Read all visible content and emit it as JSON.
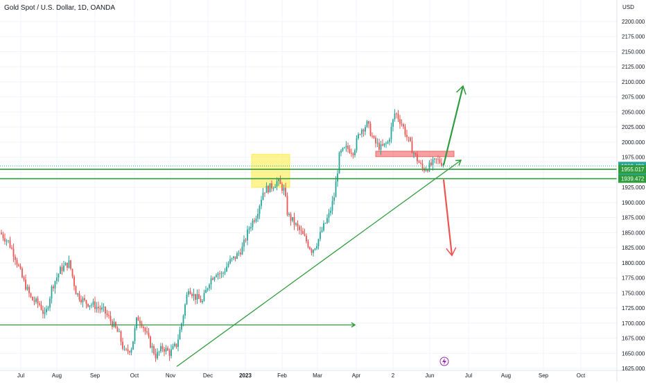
{
  "header": {
    "symbol_title": "Gold Spot / U.S. Dollar, 1D, OANDA",
    "currency": "USD"
  },
  "chart_data": {
    "type": "candlestick",
    "x_tick_labels": [
      "Jul",
      "Aug",
      "Sep",
      "Oct",
      "Nov",
      "Dec",
      "2023",
      "Feb",
      "Mar",
      "Apr",
      "2",
      "Jun",
      "Jul",
      "Aug",
      "Sep",
      "Oct"
    ],
    "y_tick_labels": [
      "2200.000",
      "2175.000",
      "2150.000",
      "2125.000",
      "2100.000",
      "2075.000",
      "2050.000",
      "2025.000",
      "2000.000",
      "1975.000",
      "1950.000",
      "1925.000",
      "1900.000",
      "1875.000",
      "1850.000",
      "1825.000",
      "1800.000",
      "1775.000",
      "1750.000",
      "1725.000",
      "1700.000",
      "1675.000",
      "1650.000",
      "1625.000"
    ],
    "y_ticks": [
      2200,
      2175,
      2150,
      2125,
      2100,
      2075,
      2050,
      2025,
      2000,
      1975,
      1950,
      1925,
      1900,
      1875,
      1850,
      1825,
      1800,
      1775,
      1750,
      1725,
      1700,
      1675,
      1650,
      1625
    ],
    "ylim": [
      1620,
      2222
    ],
    "price_labels": [
      {
        "text": "1960.490",
        "value": 1960.49,
        "color": "#26a69a"
      },
      {
        "text": "15:33:46",
        "value": 1953.2,
        "color": "#26a69a"
      },
      {
        "text": "1955.017",
        "value": 1955.017,
        "color": "#2e9b3c"
      },
      {
        "text": "1939.472",
        "value": 1939.472,
        "color": "#2e9b3c"
      }
    ],
    "horizontal_levels": [
      {
        "value": 1955.017,
        "color": "#2e9b3c"
      },
      {
        "value": 1939.472,
        "color": "#2e9b3c"
      },
      {
        "value": 1960.49,
        "color": "#26a69a",
        "style": "dotted"
      }
    ],
    "up_color": "#26a69a",
    "down_color": "#ef5350",
    "waypoints": [
      [
        0,
        1850
      ],
      [
        12,
        1835
      ],
      [
        22,
        1810
      ],
      [
        32,
        1775
      ],
      [
        45,
        1740
      ],
      [
        58,
        1730
      ],
      [
        65,
        1710
      ],
      [
        75,
        1760
      ],
      [
        88,
        1790
      ],
      [
        100,
        1800
      ],
      [
        110,
        1750
      ],
      [
        122,
        1735
      ],
      [
        135,
        1730
      ],
      [
        150,
        1720
      ],
      [
        162,
        1700
      ],
      [
        172,
        1680
      ],
      [
        180,
        1650
      ],
      [
        190,
        1660
      ],
      [
        198,
        1710
      ],
      [
        205,
        1700
      ],
      [
        215,
        1670
      ],
      [
        225,
        1645
      ],
      [
        235,
        1660
      ],
      [
        245,
        1650
      ],
      [
        255,
        1665
      ],
      [
        262,
        1700
      ],
      [
        272,
        1760
      ],
      [
        280,
        1745
      ],
      [
        292,
        1735
      ],
      [
        302,
        1770
      ],
      [
        312,
        1785
      ],
      [
        320,
        1780
      ],
      [
        330,
        1800
      ],
      [
        340,
        1810
      ],
      [
        350,
        1825
      ],
      [
        360,
        1860
      ],
      [
        370,
        1880
      ],
      [
        380,
        1920
      ],
      [
        390,
        1925
      ],
      [
        400,
        1935
      ],
      [
        410,
        1920
      ],
      [
        415,
        1880
      ],
      [
        425,
        1865
      ],
      [
        440,
        1840
      ],
      [
        450,
        1820
      ],
      [
        458,
        1835
      ],
      [
        465,
        1855
      ],
      [
        475,
        1880
      ],
      [
        482,
        1910
      ],
      [
        490,
        1980
      ],
      [
        500,
        1990
      ],
      [
        510,
        1985
      ],
      [
        520,
        2020
      ],
      [
        530,
        2030
      ],
      [
        540,
        2000
      ],
      [
        550,
        1990
      ],
      [
        560,
        2000
      ],
      [
        570,
        2050
      ],
      [
        580,
        2030
      ],
      [
        590,
        2000
      ],
      [
        600,
        1975
      ],
      [
        610,
        1955
      ],
      [
        620,
        1960
      ],
      [
        630,
        1970
      ],
      [
        640,
        1965
      ]
    ]
  },
  "drawings": {
    "boxes": [
      {
        "name": "yellow-zone",
        "fill": "#ffeb3b",
        "x1": 363,
        "x2": 418,
        "y1": 1980,
        "y2": 1925
      },
      {
        "name": "red-resistance-box",
        "fill": "#ef5350",
        "x1": 542,
        "x2": 655,
        "y1": 1985,
        "y2": 1976
      }
    ],
    "trend_line": {
      "color": "#2e9b3c",
      "x1": 255,
      "y1": 1628,
      "x2": 665,
      "y2": 1970
    },
    "support_line_low": {
      "color": "#2e9b3c",
      "x1": 0,
      "y1": 1697,
      "x2": 512,
      "y2": 1697
    },
    "arrow_up": {
      "color": "#2e9b3c",
      "x1": 640,
      "y1": 1962,
      "x2": 668,
      "y2": 2093
    },
    "arrow_down": {
      "color": "#ef5350",
      "x1": 640,
      "y1": 1938,
      "x2": 652,
      "y2": 1812
    }
  }
}
